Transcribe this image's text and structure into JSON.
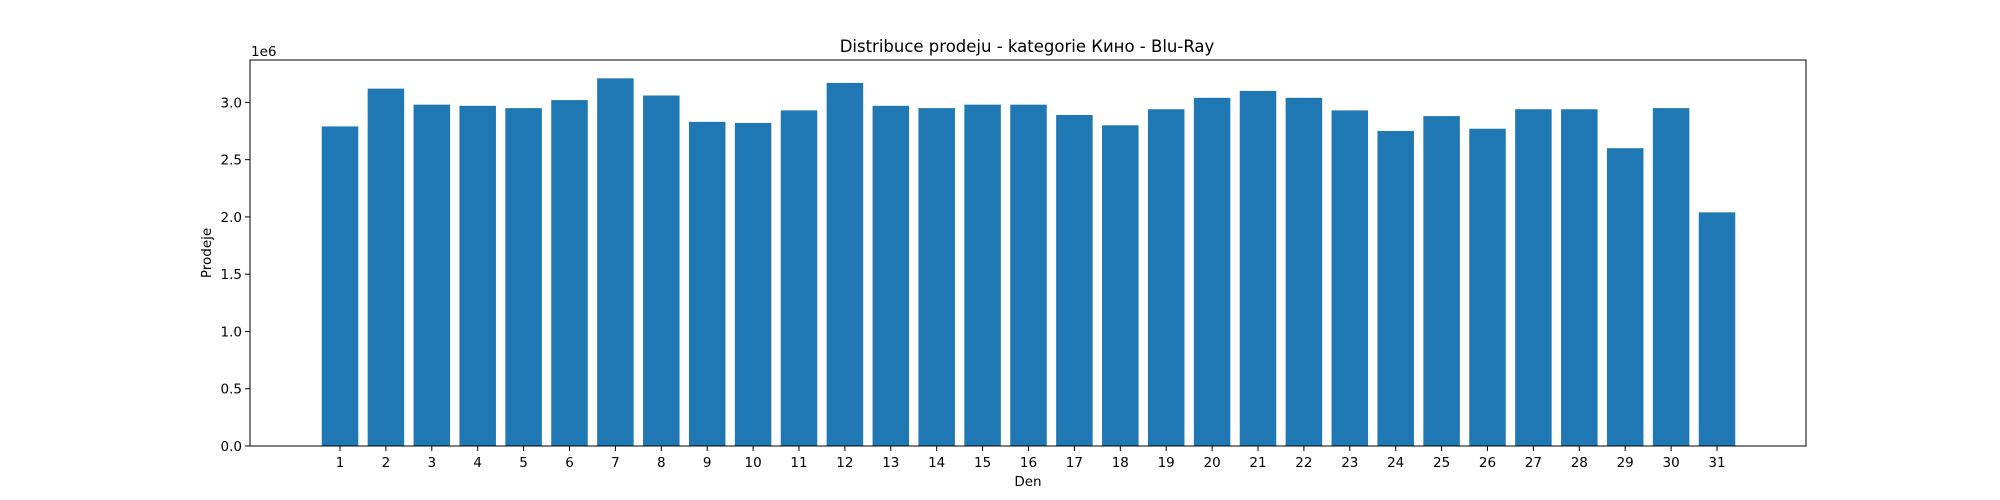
{
  "chart_data": {
    "type": "bar",
    "title": "Distribuce prodeju  - kategorie Кино - Blu-Ray",
    "xlabel": "Den",
    "ylabel": "Prodeje",
    "offset_label": "1e6",
    "categories": [
      "1",
      "2",
      "3",
      "4",
      "5",
      "6",
      "7",
      "8",
      "9",
      "10",
      "11",
      "12",
      "13",
      "14",
      "15",
      "16",
      "17",
      "18",
      "19",
      "20",
      "21",
      "22",
      "23",
      "24",
      "25",
      "26",
      "27",
      "28",
      "29",
      "30",
      "31"
    ],
    "values": [
      2.79,
      3.12,
      2.98,
      2.97,
      2.95,
      3.02,
      3.21,
      3.06,
      2.83,
      2.82,
      2.93,
      3.17,
      2.97,
      2.95,
      2.98,
      2.98,
      2.89,
      2.8,
      2.94,
      3.04,
      3.1,
      3.04,
      2.93,
      2.75,
      2.88,
      2.77,
      2.94,
      2.94,
      2.6,
      2.95,
      2.04
    ],
    "yticks": [
      "0.0",
      "0.5",
      "1.0",
      "1.5",
      "2.0",
      "2.5",
      "3.0"
    ],
    "ylim": [
      0,
      3.37
    ],
    "grid": false,
    "color": "#1f77b4"
  }
}
